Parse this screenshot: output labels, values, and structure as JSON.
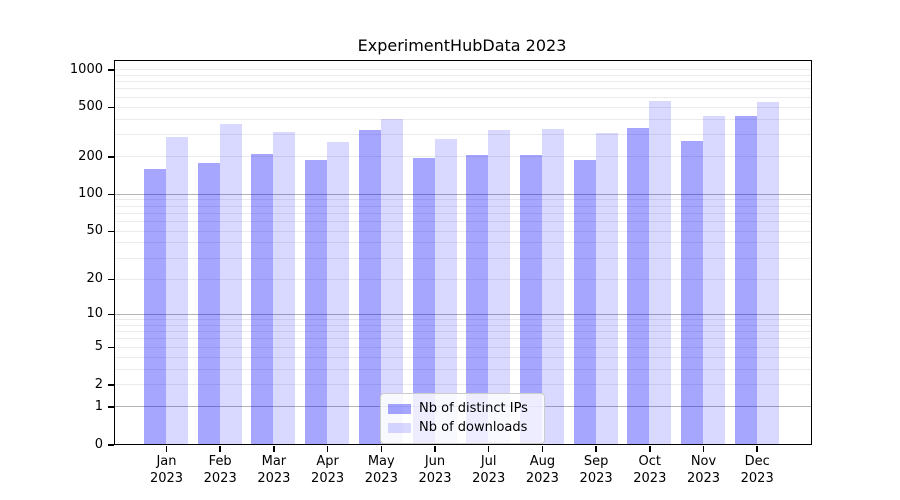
{
  "chart_data": {
    "type": "bar",
    "title": "ExperimentHubData 2023",
    "categories": [
      "Jan 2023",
      "Feb 2023",
      "Mar 2023",
      "Apr 2023",
      "May 2023",
      "Jun 2023",
      "Jul 2023",
      "Aug 2023",
      "Sep 2023",
      "Oct 2023",
      "Nov 2023",
      "Dec 2023"
    ],
    "series": [
      {
        "name": "Nb of distinct IPs",
        "color": "rgba(0,0,255,0.35)",
        "values": [
          158,
          177,
          209,
          187,
          325,
          194,
          205,
          206,
          187,
          334,
          265,
          420
        ]
      },
      {
        "name": "Nb of downloads",
        "color": "rgba(0,0,255,0.15)",
        "values": [
          286,
          363,
          313,
          260,
          397,
          275,
          325,
          331,
          308,
          555,
          420,
          540
        ]
      }
    ],
    "y_axis": {
      "scale": "log1p",
      "ticks": [
        0,
        1,
        2,
        5,
        10,
        20,
        50,
        100,
        200,
        500,
        1000
      ],
      "major_grid": [
        1,
        10,
        100
      ],
      "minor_grid_decades": [
        1,
        10,
        100
      ],
      "max": 1160
    },
    "legend_position": "lower center",
    "grid": "on"
  },
  "colors": {
    "bar_distinct_ips": "rgba(0,0,255,0.35)",
    "bar_downloads": "rgba(0,0,255,0.15)",
    "grid_major": "#b3b3b3",
    "grid_minor": "#ebebeb",
    "spine": "#000000",
    "legend_border": "#cccccc",
    "legend_background": "rgba(255,255,255,0.8)"
  }
}
